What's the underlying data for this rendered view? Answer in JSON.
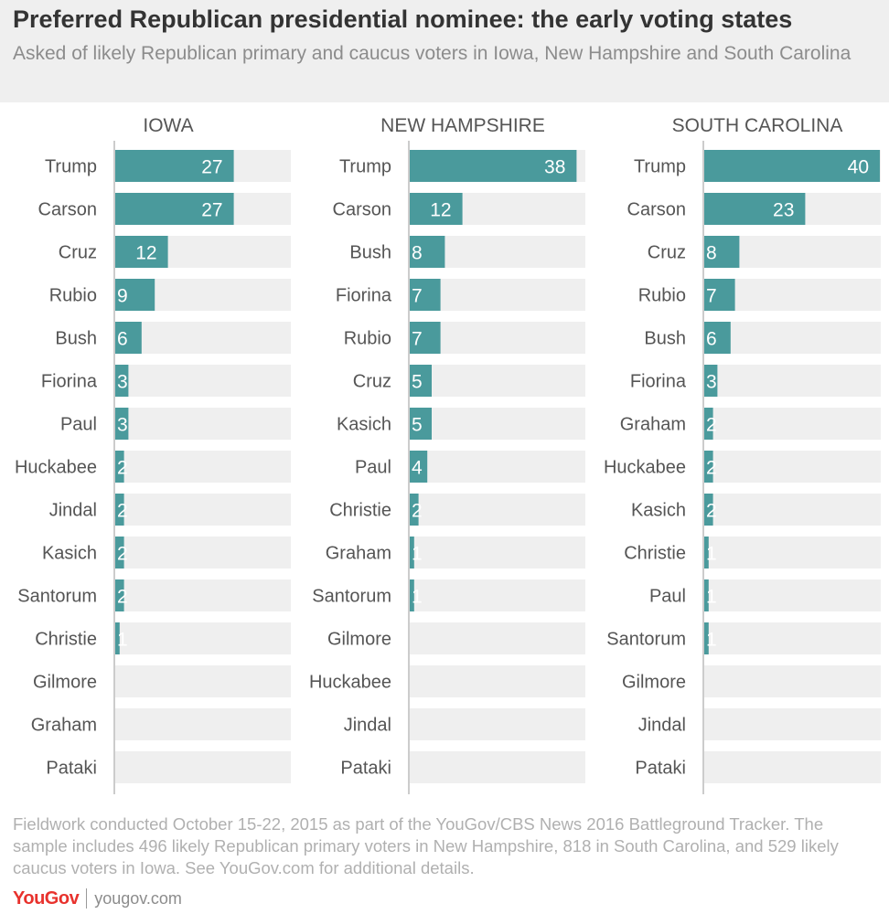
{
  "title": "Preferred Republican presidential nominee: the early voting states",
  "subtitle": "Asked of likely Republican primary and caucus voters in Iowa, New Hampshire and South Carolina",
  "footnote": "Fieldwork conducted October 15-22, 2015 as part of the YouGov/CBS News 2016 Battleground Tracker. The sample includes 496 likely Republican primary voters in New Hampshire, 818 in South Carolina, and 529 likely caucus voters in Iowa. See YouGov.com for additional details.",
  "brand": {
    "logo": "YouGov",
    "url": "yougov.com"
  },
  "colors": {
    "bar": "#4a9a9c",
    "track": "#efefef",
    "axis": "#cccccc"
  },
  "chart_data": [
    {
      "type": "bar",
      "orientation": "horizontal",
      "title": "IOWA",
      "xlim": [
        0,
        40
      ],
      "categories": [
        "Trump",
        "Carson",
        "Cruz",
        "Rubio",
        "Bush",
        "Fiorina",
        "Paul",
        "Huckabee",
        "Jindal",
        "Kasich",
        "Santorum",
        "Christie",
        "Gilmore",
        "Graham",
        "Pataki"
      ],
      "values": [
        27,
        27,
        12,
        9,
        6,
        3,
        3,
        2,
        2,
        2,
        2,
        1,
        null,
        null,
        null
      ]
    },
    {
      "type": "bar",
      "orientation": "horizontal",
      "title": "NEW HAMPSHIRE",
      "xlim": [
        0,
        40
      ],
      "categories": [
        "Trump",
        "Carson",
        "Bush",
        "Fiorina",
        "Rubio",
        "Cruz",
        "Kasich",
        "Paul",
        "Christie",
        "Graham",
        "Santorum",
        "Gilmore",
        "Huckabee",
        "Jindal",
        "Pataki"
      ],
      "values": [
        38,
        12,
        8,
        7,
        7,
        5,
        5,
        4,
        2,
        1,
        1,
        null,
        null,
        null,
        null
      ]
    },
    {
      "type": "bar",
      "orientation": "horizontal",
      "title": "SOUTH CAROLINA",
      "xlim": [
        0,
        40
      ],
      "categories": [
        "Trump",
        "Carson",
        "Cruz",
        "Rubio",
        "Bush",
        "Fiorina",
        "Graham",
        "Huckabee",
        "Kasich",
        "Christie",
        "Paul",
        "Santorum",
        "Gilmore",
        "Jindal",
        "Pataki"
      ],
      "values": [
        40,
        23,
        8,
        7,
        6,
        3,
        2,
        2,
        2,
        1,
        1,
        1,
        null,
        null,
        null
      ]
    }
  ]
}
